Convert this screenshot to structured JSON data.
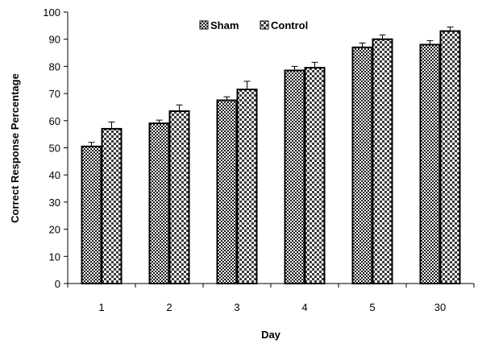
{
  "chart_data": {
    "type": "bar",
    "title": "",
    "xlabel": "Day",
    "ylabel": "Correct Response Percentage",
    "categories": [
      "1",
      "2",
      "3",
      "4",
      "5",
      "30"
    ],
    "ylim": [
      0,
      100
    ],
    "yticks": [
      0,
      10,
      20,
      30,
      40,
      50,
      60,
      70,
      80,
      90,
      100
    ],
    "grid": false,
    "legend_position": "top-center",
    "series": [
      {
        "name": "Sham",
        "values": [
          50.5,
          59,
          67.5,
          78.5,
          87,
          88
        ],
        "errors": [
          1.5,
          1.2,
          1.3,
          1.5,
          1.6,
          1.5
        ],
        "color": "#222222",
        "pattern": "dense-checker"
      },
      {
        "name": "Control",
        "values": [
          57,
          63.5,
          71.5,
          79.5,
          90,
          93
        ],
        "errors": [
          2.5,
          2.3,
          3.0,
          2.0,
          1.6,
          1.5
        ],
        "color": "#333333",
        "pattern": "checker"
      }
    ]
  }
}
